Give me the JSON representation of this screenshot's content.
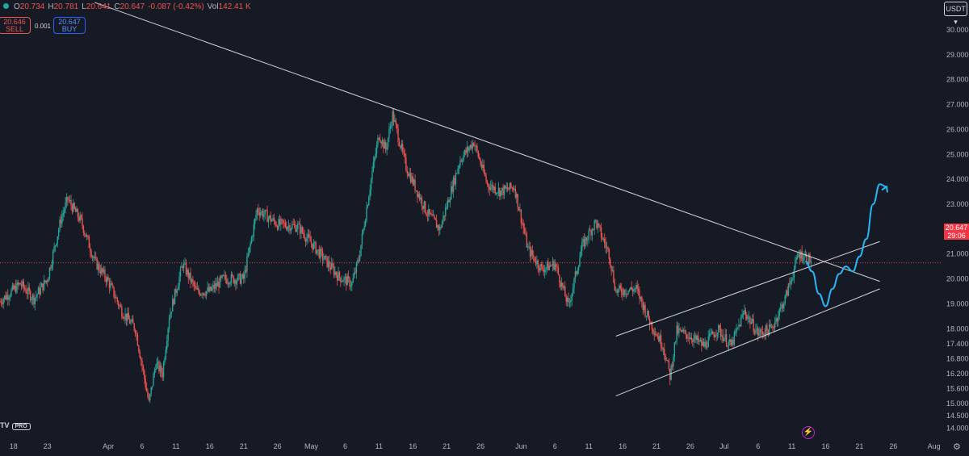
{
  "header": {
    "open_label": "O",
    "open": "20.734",
    "high_label": "H",
    "high": "20.781",
    "low_label": "L",
    "low": "20.641",
    "close_label": "C",
    "close": "20.647",
    "change": "-0.087 (-0.42%)",
    "vol_label": "Vol",
    "vol": "142.41 K"
  },
  "trade": {
    "sell_price": "20.646",
    "sell_label": "SELL",
    "spread": "0.001",
    "buy_price": "20.647",
    "buy_label": "BUY"
  },
  "currency": "USDT",
  "current_price": {
    "price": "20.647",
    "countdown": "29:06"
  },
  "logo": {
    "text": "TV",
    "badge": "PRO"
  },
  "colors": {
    "up": "#26a69a",
    "down": "#ef5350",
    "projection": "#29b6f6",
    "line": "#d1d4dc",
    "background": "#161a25"
  },
  "icons": [
    "lightning-icon",
    "settings-icon"
  ],
  "chart_data": {
    "type": "candlestick",
    "x_range": [
      "2024-03-16",
      "2024-08-02"
    ],
    "y_range": [
      13.6,
      31.2
    ],
    "y_ticks": [
      "30.000",
      "29.000",
      "28.000",
      "27.000",
      "26.000",
      "25.000",
      "24.000",
      "23.000",
      "22.000",
      "21.000",
      "20.000",
      "19.000",
      "18.000",
      "17.400",
      "16.800",
      "16.200",
      "15.600",
      "15.000",
      "14.500",
      "14.000"
    ],
    "x_ticks": [
      "18",
      "23",
      "Apr",
      "6",
      "11",
      "16",
      "21",
      "26",
      "May",
      "6",
      "11",
      "16",
      "21",
      "26",
      "Jun",
      "6",
      "11",
      "16",
      "21",
      "26",
      "Jul",
      "6",
      "11",
      "16",
      "21",
      "26",
      "Aug"
    ],
    "current_price_line": 20.647,
    "price_path": [
      [
        "2024-03-16",
        19.1
      ],
      [
        "2024-03-19",
        19.8
      ],
      [
        "2024-03-21",
        19.2
      ],
      [
        "2024-03-23",
        20.0
      ],
      [
        "2024-03-25",
        22.4
      ],
      [
        "2024-03-26",
        23.2
      ],
      [
        "2024-03-28",
        22.3
      ],
      [
        "2024-03-30",
        20.7
      ],
      [
        "2024-04-01",
        19.9
      ],
      [
        "2024-04-03",
        18.7
      ],
      [
        "2024-04-05",
        18.0
      ],
      [
        "2024-04-06",
        16.5
      ],
      [
        "2024-04-07",
        15.0
      ],
      [
        "2024-04-08",
        16.6
      ],
      [
        "2024-04-09",
        16.2
      ],
      [
        "2024-04-10",
        18.5
      ],
      [
        "2024-04-12",
        20.6
      ],
      [
        "2024-04-14",
        19.5
      ],
      [
        "2024-04-16",
        19.5
      ],
      [
        "2024-04-18",
        20.0
      ],
      [
        "2024-04-21",
        20.0
      ],
      [
        "2024-04-23",
        22.8
      ],
      [
        "2024-04-26",
        22.2
      ],
      [
        "2024-04-29",
        22.1
      ],
      [
        "2024-05-02",
        21.1
      ],
      [
        "2024-05-05",
        20.1
      ],
      [
        "2024-05-07",
        19.8
      ],
      [
        "2024-05-08",
        20.8
      ],
      [
        "2024-05-10",
        24.3
      ],
      [
        "2024-05-11",
        25.8
      ],
      [
        "2024-05-12",
        25.2
      ],
      [
        "2024-05-13",
        26.6
      ],
      [
        "2024-05-15",
        24.5
      ],
      [
        "2024-05-18",
        22.7
      ],
      [
        "2024-05-20",
        22.0
      ],
      [
        "2024-05-23",
        24.8
      ],
      [
        "2024-05-25",
        25.5
      ],
      [
        "2024-05-27",
        23.8
      ],
      [
        "2024-05-29",
        23.5
      ],
      [
        "2024-05-31",
        23.7
      ],
      [
        "2024-06-02",
        21.2
      ],
      [
        "2024-06-04",
        20.4
      ],
      [
        "2024-06-06",
        20.6
      ],
      [
        "2024-06-08",
        18.9
      ],
      [
        "2024-06-10",
        21.3
      ],
      [
        "2024-06-12",
        22.3
      ],
      [
        "2024-06-14",
        21.0
      ],
      [
        "2024-06-15",
        19.5
      ],
      [
        "2024-06-18",
        19.6
      ],
      [
        "2024-06-20",
        18.3
      ],
      [
        "2024-06-22",
        17.3
      ],
      [
        "2024-06-23",
        16.1
      ],
      [
        "2024-06-24",
        17.9
      ],
      [
        "2024-06-26",
        17.7
      ],
      [
        "2024-06-28",
        17.3
      ],
      [
        "2024-06-30",
        18.0
      ],
      [
        "2024-07-02",
        17.3
      ],
      [
        "2024-07-04",
        18.7
      ],
      [
        "2024-07-06",
        17.8
      ],
      [
        "2024-07-08",
        18.0
      ],
      [
        "2024-07-10",
        19.2
      ],
      [
        "2024-07-12",
        21.0
      ],
      [
        "2024-07-13",
        20.9
      ],
      [
        "2024-07-14",
        20.7
      ]
    ],
    "projection": [
      [
        "2024-07-13",
        20.7
      ],
      [
        "2024-07-14",
        20.3
      ],
      [
        "2024-07-15",
        19.4
      ],
      [
        "2024-07-16",
        18.9
      ],
      [
        "2024-07-17",
        19.6
      ],
      [
        "2024-07-18",
        20.2
      ],
      [
        "2024-07-19",
        20.5
      ],
      [
        "2024-07-20",
        20.3
      ],
      [
        "2024-07-21",
        20.9
      ],
      [
        "2024-07-22",
        21.6
      ],
      [
        "2024-07-23",
        23.0
      ],
      [
        "2024-07-24",
        23.8
      ],
      [
        "2024-07-25",
        23.7
      ]
    ],
    "trendlines": [
      {
        "from": [
          "2024-03-30",
          31.1
        ],
        "to": [
          "2024-07-24",
          19.9
        ]
      },
      {
        "from": [
          "2024-06-15",
          17.7
        ],
        "to": [
          "2024-07-24",
          21.5
        ]
      },
      {
        "from": [
          "2024-06-15",
          15.3
        ],
        "to": [
          "2024-07-24",
          19.6
        ]
      }
    ]
  }
}
